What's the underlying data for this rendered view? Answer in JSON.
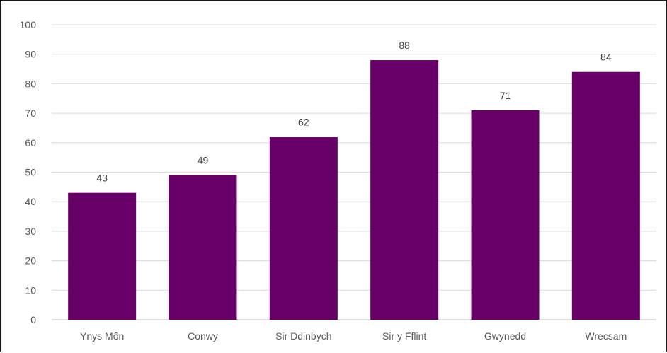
{
  "chart_data": {
    "type": "bar",
    "categories": [
      "Ynys Môn",
      "Conwy",
      "Sir Ddinbych",
      "Sir y Fflint",
      "Gwynedd",
      "Wrecsam"
    ],
    "values": [
      43,
      49,
      62,
      88,
      71,
      84
    ],
    "title": "",
    "xlabel": "",
    "ylabel": "",
    "ylim": [
      0,
      100
    ],
    "yticks": [
      0,
      10,
      20,
      30,
      40,
      50,
      60,
      70,
      80,
      90,
      100
    ],
    "bar_color": "#660066",
    "grid": true,
    "data_labels": true
  }
}
